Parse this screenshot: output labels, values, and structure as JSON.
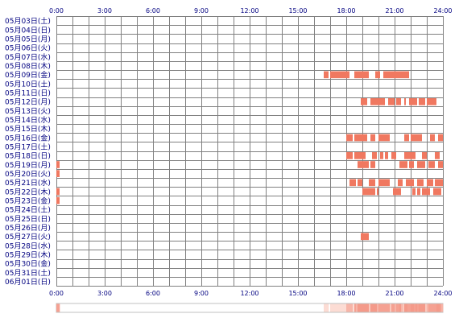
{
  "chart_data": {
    "type": "heatmap",
    "title": "",
    "xlabel": "",
    "ylabel": "",
    "xlim": [
      0,
      24
    ],
    "x_ticks": [
      "0:00",
      "3:00",
      "6:00",
      "9:00",
      "12:00",
      "15:00",
      "18:00",
      "21:00",
      "24:00"
    ],
    "grid": true,
    "dates": [
      "05月03日(土)",
      "05月04日(日)",
      "05月05日(月)",
      "05月06日(火)",
      "05月07日(水)",
      "05月08日(木)",
      "05月09日(金)",
      "05月10日(土)",
      "05月11日(日)",
      "05月12日(月)",
      "05月13日(火)",
      "05月14日(水)",
      "05月15日(木)",
      "05月16日(金)",
      "05月17日(土)",
      "05月18日(日)",
      "05月19日(月)",
      "05月20日(火)",
      "05月21日(水)",
      "05月22日(木)",
      "05月23日(金)",
      "05月24日(土)",
      "05月25日(日)",
      "05月26日(月)",
      "05月27日(火)",
      "05月28日(水)",
      "05月29日(木)",
      "05月30日(金)",
      "05月31日(土)",
      "06月01日(日)"
    ],
    "activity": [
      {
        "date": "05月09日(金)",
        "intervals": [
          [
            16.6,
            16.9
          ],
          [
            17.0,
            18.2
          ],
          [
            18.5,
            19.4
          ],
          [
            19.8,
            20.1
          ],
          [
            20.3,
            21.9
          ]
        ]
      },
      {
        "date": "05月12日(月)",
        "intervals": [
          [
            18.9,
            19.3
          ],
          [
            19.5,
            20.4
          ],
          [
            20.6,
            21.0
          ],
          [
            21.1,
            21.4
          ],
          [
            21.6,
            21.7
          ],
          [
            21.9,
            22.4
          ],
          [
            22.5,
            22.9
          ],
          [
            23.0,
            23.6
          ]
        ]
      },
      {
        "date": "05月16日(金)",
        "intervals": [
          [
            18.0,
            18.4
          ],
          [
            18.5,
            19.3
          ],
          [
            19.5,
            19.8
          ],
          [
            20.0,
            20.7
          ],
          [
            21.6,
            21.9
          ],
          [
            22.0,
            22.7
          ],
          [
            23.2,
            23.5
          ],
          [
            23.7,
            24.0
          ]
        ]
      },
      {
        "date": "05月18日(日)",
        "intervals": [
          [
            18.0,
            18.4
          ],
          [
            18.5,
            19.2
          ],
          [
            19.6,
            19.9
          ],
          [
            20.1,
            20.3
          ],
          [
            20.4,
            20.6
          ],
          [
            20.8,
            21.1
          ],
          [
            21.6,
            22.3
          ],
          [
            22.7,
            23.0
          ],
          [
            23.5,
            23.8
          ]
        ]
      },
      {
        "date": "05月19日(月)",
        "intervals": [
          [
            0.0,
            0.2
          ],
          [
            18.7,
            19.4
          ],
          [
            19.5,
            19.8
          ],
          [
            21.3,
            21.8
          ],
          [
            21.9,
            22.2
          ],
          [
            22.4,
            22.9
          ],
          [
            23.1,
            23.5
          ],
          [
            23.7,
            24.0
          ]
        ]
      },
      {
        "date": "05月20日(火)",
        "intervals": [
          [
            0.0,
            0.2
          ]
        ]
      },
      {
        "date": "05月21日(水)",
        "intervals": [
          [
            18.2,
            18.6
          ],
          [
            18.7,
            19.0
          ],
          [
            19.4,
            19.8
          ],
          [
            20.0,
            20.7
          ],
          [
            21.2,
            21.5
          ],
          [
            21.7,
            22.2
          ],
          [
            22.4,
            22.8
          ],
          [
            23.0,
            23.4
          ],
          [
            23.5,
            24.0
          ]
        ]
      },
      {
        "date": "05月22日(木)",
        "intervals": [
          [
            0.0,
            0.2
          ],
          [
            19.0,
            19.8
          ],
          [
            19.9,
            20.0
          ],
          [
            20.9,
            21.4
          ],
          [
            22.1,
            22.3
          ],
          [
            22.4,
            22.6
          ],
          [
            22.7,
            23.2
          ],
          [
            23.4,
            23.9
          ]
        ]
      },
      {
        "date": "05月23日(金)",
        "intervals": [
          [
            0.0,
            0.2
          ]
        ]
      },
      {
        "date": "05月27日(火)",
        "intervals": [
          [
            18.9,
            19.4
          ]
        ]
      }
    ],
    "colors": {
      "bar": "#f07860",
      "grid": "#808080",
      "background": "#ffffff",
      "text": "#000080",
      "density_high": "#f49a8a",
      "density_low": "#fff0ea"
    }
  }
}
